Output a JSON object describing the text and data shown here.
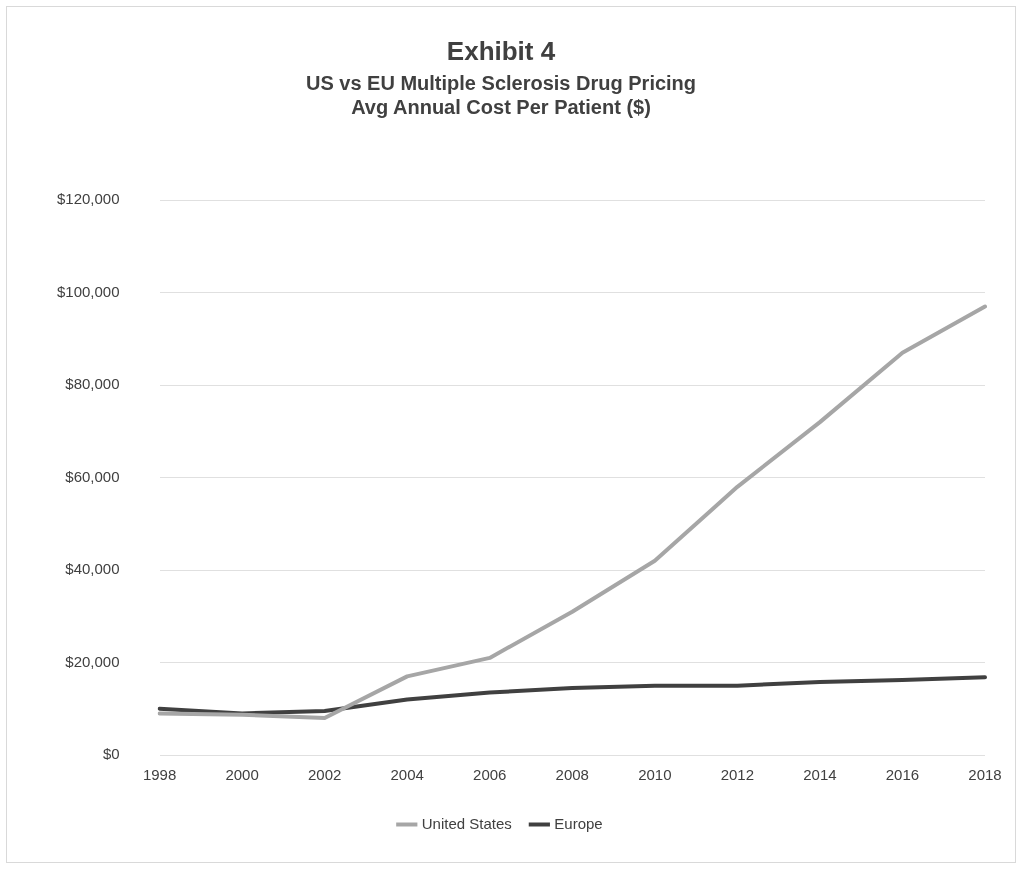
{
  "chart_data": {
    "type": "line",
    "title": "Exhibit 4",
    "subtitle": "US vs EU Multiple Sclerosis Drug Pricing\nAvg Annual Cost Per Patient ($)",
    "categories": [
      "1998",
      "2000",
      "2002",
      "2004",
      "2006",
      "2008",
      "2010",
      "2012",
      "2014",
      "2016",
      "2018"
    ],
    "series": [
      {
        "name": "United States",
        "color": "#a6a6a6",
        "values": [
          9000,
          8700,
          8000,
          17000,
          21000,
          31000,
          42000,
          58000,
          72000,
          87000,
          97000
        ]
      },
      {
        "name": "Europe",
        "color": "#404040",
        "values": [
          10000,
          9000,
          9500,
          12000,
          13500,
          14500,
          15000,
          15000,
          15800,
          16200,
          16800
        ]
      }
    ],
    "ylim": [
      0,
      120000
    ],
    "yticks": [
      {
        "value": 0,
        "label": "$0"
      },
      {
        "value": 20000,
        "label": "$20,000"
      },
      {
        "value": 40000,
        "label": "$40,000"
      },
      {
        "value": 60000,
        "label": "$60,000"
      },
      {
        "value": 80000,
        "label": "$80,000"
      },
      {
        "value": 100000,
        "label": "$100,000"
      },
      {
        "value": 120000,
        "label": "$120,000"
      }
    ],
    "grid": "y",
    "legend": "bottom",
    "marker": "none",
    "line_style": "solid"
  }
}
